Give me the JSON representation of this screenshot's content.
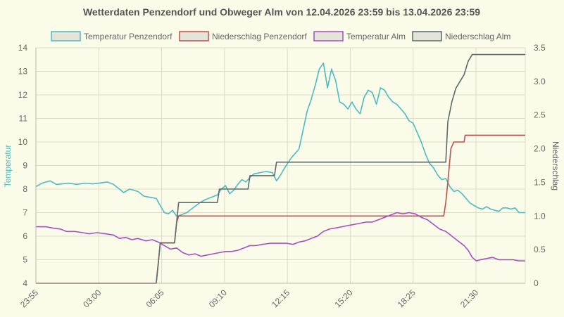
{
  "chart_data": {
    "type": "line",
    "title": "Wetterdaten Penzendorf und Obweger Alm von 12.04.2026 23:59 bis 13.04.2026 23:59",
    "y_left_label": "Temperatur",
    "y_right_label": "Niederschlag",
    "y_left_lim": [
      4,
      14
    ],
    "y_left_ticks": [
      "4",
      "5",
      "6",
      "7",
      "8",
      "9",
      "10",
      "11",
      "12",
      "13",
      "14"
    ],
    "y_right_lim": [
      0,
      3.5
    ],
    "y_right_ticks": [
      "0",
      "0.5",
      "1.0",
      "1.5",
      "2.0",
      "2.5",
      "3.0",
      "3.5"
    ],
    "x_lim_hours": [
      0,
      24
    ],
    "x_ticks": [
      {
        "label": "23:55",
        "h": 0
      },
      {
        "label": "03:00",
        "h": 3.0833
      },
      {
        "label": "06:05",
        "h": 6.1667
      },
      {
        "label": "09:10",
        "h": 9.25
      },
      {
        "label": "12:15",
        "h": 12.3333
      },
      {
        "label": "15:20",
        "h": 15.4167
      },
      {
        "label": "18:25",
        "h": 18.5
      },
      {
        "label": "21:30",
        "h": 21.5833
      }
    ],
    "grid": true,
    "legend_position": "top",
    "series": [
      {
        "name": "Temperatur Penzendorf",
        "axis": "left",
        "color": "#4bbcbf",
        "step": false,
        "points": [
          [
            0,
            8.1
          ],
          [
            0.3,
            8.25
          ],
          [
            0.5,
            8.3
          ],
          [
            0.7,
            8.35
          ],
          [
            1,
            8.2
          ],
          [
            1.3,
            8.22
          ],
          [
            1.6,
            8.25
          ],
          [
            2,
            8.2
          ],
          [
            2.4,
            8.25
          ],
          [
            2.8,
            8.22
          ],
          [
            3.1,
            8.25
          ],
          [
            3.5,
            8.3
          ],
          [
            3.8,
            8.2
          ],
          [
            4.1,
            8.0
          ],
          [
            4.3,
            7.85
          ],
          [
            4.6,
            8.0
          ],
          [
            5.0,
            7.9
          ],
          [
            5.3,
            7.7
          ],
          [
            5.6,
            7.65
          ],
          [
            5.9,
            7.6
          ],
          [
            6.1,
            7.3
          ],
          [
            6.3,
            7.0
          ],
          [
            6.5,
            6.95
          ],
          [
            6.7,
            7.1
          ],
          [
            6.9,
            6.85
          ],
          [
            7.1,
            6.9
          ],
          [
            7.4,
            7.0
          ],
          [
            7.7,
            7.2
          ],
          [
            8.0,
            7.4
          ],
          [
            8.3,
            7.55
          ],
          [
            8.6,
            7.65
          ],
          [
            8.9,
            7.75
          ],
          [
            9.1,
            8.0
          ],
          [
            9.3,
            8.15
          ],
          [
            9.5,
            7.8
          ],
          [
            9.7,
            7.95
          ],
          [
            9.9,
            8.2
          ],
          [
            10.1,
            8.4
          ],
          [
            10.3,
            8.3
          ],
          [
            10.5,
            8.5
          ],
          [
            10.7,
            8.65
          ],
          [
            11.0,
            8.7
          ],
          [
            11.3,
            8.75
          ],
          [
            11.6,
            8.7
          ],
          [
            11.8,
            8.35
          ],
          [
            12.0,
            8.6
          ],
          [
            12.2,
            8.9
          ],
          [
            12.5,
            9.3
          ],
          [
            12.7,
            9.5
          ],
          [
            12.9,
            9.7
          ],
          [
            13.1,
            10.5
          ],
          [
            13.3,
            11.3
          ],
          [
            13.5,
            11.8
          ],
          [
            13.7,
            12.4
          ],
          [
            13.9,
            13.1
          ],
          [
            14.1,
            13.35
          ],
          [
            14.3,
            12.3
          ],
          [
            14.5,
            13.1
          ],
          [
            14.7,
            12.6
          ],
          [
            14.9,
            11.7
          ],
          [
            15.1,
            11.6
          ],
          [
            15.3,
            11.4
          ],
          [
            15.5,
            11.7
          ],
          [
            15.7,
            11.4
          ],
          [
            15.9,
            11.2
          ],
          [
            16.1,
            11.9
          ],
          [
            16.3,
            12.2
          ],
          [
            16.5,
            12.1
          ],
          [
            16.7,
            11.6
          ],
          [
            16.9,
            12.3
          ],
          [
            17.1,
            12.2
          ],
          [
            17.3,
            11.9
          ],
          [
            17.5,
            11.7
          ],
          [
            17.7,
            11.6
          ],
          [
            17.9,
            11.4
          ],
          [
            18.1,
            11.2
          ],
          [
            18.3,
            10.9
          ],
          [
            18.5,
            10.8
          ],
          [
            18.7,
            10.4
          ],
          [
            18.9,
            10.0
          ],
          [
            19.1,
            9.5
          ],
          [
            19.3,
            9.1
          ],
          [
            19.5,
            8.9
          ],
          [
            19.7,
            8.6
          ],
          [
            19.9,
            8.4
          ],
          [
            20.1,
            8.45
          ],
          [
            20.3,
            8.1
          ],
          [
            20.5,
            7.9
          ],
          [
            20.7,
            7.95
          ],
          [
            20.9,
            7.8
          ],
          [
            21.1,
            7.6
          ],
          [
            21.3,
            7.4
          ],
          [
            21.5,
            7.3
          ],
          [
            21.7,
            7.2
          ],
          [
            21.9,
            7.15
          ],
          [
            22.1,
            7.25
          ],
          [
            22.3,
            7.15
          ],
          [
            22.5,
            7.1
          ],
          [
            22.7,
            7.05
          ],
          [
            22.9,
            7.2
          ],
          [
            23.1,
            7.2
          ],
          [
            23.3,
            7.15
          ],
          [
            23.5,
            7.2
          ],
          [
            23.7,
            7.0
          ],
          [
            24,
            7.0
          ]
        ]
      },
      {
        "name": "Niederschlag Penzendorf",
        "axis": "right",
        "color": "#c0504d",
        "step": true,
        "points": [
          [
            0,
            0
          ],
          [
            5.9,
            0
          ],
          [
            6.0,
            0.3
          ],
          [
            6.1,
            0.6
          ],
          [
            6.8,
            0.6
          ],
          [
            6.9,
            0.9
          ],
          [
            7.0,
            1.0
          ],
          [
            20.0,
            1.0
          ],
          [
            20.1,
            1.2
          ],
          [
            20.2,
            1.5
          ],
          [
            20.35,
            2.0
          ],
          [
            20.5,
            2.1
          ],
          [
            21.0,
            2.1
          ],
          [
            21.05,
            2.2
          ],
          [
            24,
            2.2
          ]
        ]
      },
      {
        "name": "Temperatur Alm",
        "axis": "left",
        "color": "#a64fc4",
        "step": false,
        "points": [
          [
            0,
            6.4
          ],
          [
            0.5,
            6.4
          ],
          [
            0.8,
            6.35
          ],
          [
            1.2,
            6.3
          ],
          [
            1.5,
            6.2
          ],
          [
            1.9,
            6.2
          ],
          [
            2.3,
            6.15
          ],
          [
            2.6,
            6.1
          ],
          [
            3.0,
            6.15
          ],
          [
            3.4,
            6.1
          ],
          [
            3.8,
            6.05
          ],
          [
            4.1,
            5.9
          ],
          [
            4.4,
            5.95
          ],
          [
            4.7,
            5.85
          ],
          [
            5.0,
            5.9
          ],
          [
            5.4,
            5.8
          ],
          [
            5.7,
            5.85
          ],
          [
            6.0,
            5.75
          ],
          [
            6.3,
            5.6
          ],
          [
            6.6,
            5.45
          ],
          [
            6.9,
            5.5
          ],
          [
            7.2,
            5.3
          ],
          [
            7.5,
            5.2
          ],
          [
            7.8,
            5.25
          ],
          [
            8.1,
            5.15
          ],
          [
            8.4,
            5.2
          ],
          [
            8.7,
            5.25
          ],
          [
            9.0,
            5.3
          ],
          [
            9.3,
            5.35
          ],
          [
            9.6,
            5.35
          ],
          [
            9.9,
            5.4
          ],
          [
            10.2,
            5.5
          ],
          [
            10.5,
            5.6
          ],
          [
            10.8,
            5.6
          ],
          [
            11.1,
            5.65
          ],
          [
            11.5,
            5.7
          ],
          [
            11.9,
            5.7
          ],
          [
            12.3,
            5.7
          ],
          [
            12.6,
            5.65
          ],
          [
            12.9,
            5.75
          ],
          [
            13.2,
            5.8
          ],
          [
            13.5,
            5.9
          ],
          [
            13.8,
            6.0
          ],
          [
            14.1,
            6.2
          ],
          [
            14.4,
            6.3
          ],
          [
            14.7,
            6.35
          ],
          [
            15.0,
            6.4
          ],
          [
            15.3,
            6.45
          ],
          [
            15.6,
            6.5
          ],
          [
            15.9,
            6.55
          ],
          [
            16.2,
            6.6
          ],
          [
            16.5,
            6.6
          ],
          [
            16.8,
            6.7
          ],
          [
            17.1,
            6.8
          ],
          [
            17.4,
            6.9
          ],
          [
            17.7,
            7.0
          ],
          [
            18.0,
            6.95
          ],
          [
            18.3,
            7.0
          ],
          [
            18.6,
            6.95
          ],
          [
            18.9,
            6.8
          ],
          [
            19.2,
            6.7
          ],
          [
            19.5,
            6.5
          ],
          [
            19.8,
            6.3
          ],
          [
            20.1,
            6.2
          ],
          [
            20.4,
            6.0
          ],
          [
            20.7,
            5.8
          ],
          [
            21.0,
            5.6
          ],
          [
            21.2,
            5.4
          ],
          [
            21.4,
            5.1
          ],
          [
            21.6,
            4.95
          ],
          [
            21.8,
            5.0
          ],
          [
            22.1,
            5.05
          ],
          [
            22.4,
            5.1
          ],
          [
            22.7,
            5.0
          ],
          [
            23.0,
            5.0
          ],
          [
            23.4,
            5.0
          ],
          [
            23.7,
            4.95
          ],
          [
            24,
            4.95
          ]
        ]
      },
      {
        "name": "Niederschlag Alm",
        "axis": "right",
        "color": "#5f6a68",
        "step": true,
        "points": [
          [
            0,
            0
          ],
          [
            5.9,
            0
          ],
          [
            6.0,
            0.3
          ],
          [
            6.1,
            0.6
          ],
          [
            6.8,
            0.6
          ],
          [
            6.9,
            0.9
          ],
          [
            7.0,
            1.2
          ],
          [
            8.9,
            1.2
          ],
          [
            9.0,
            1.4
          ],
          [
            10.4,
            1.4
          ],
          [
            10.5,
            1.6
          ],
          [
            11.7,
            1.6
          ],
          [
            11.8,
            1.8
          ],
          [
            20.1,
            1.8
          ],
          [
            20.2,
            2.4
          ],
          [
            20.4,
            2.7
          ],
          [
            20.6,
            2.9
          ],
          [
            21.0,
            3.1
          ],
          [
            21.2,
            3.3
          ],
          [
            21.4,
            3.4
          ],
          [
            24,
            3.4
          ]
        ]
      }
    ]
  }
}
